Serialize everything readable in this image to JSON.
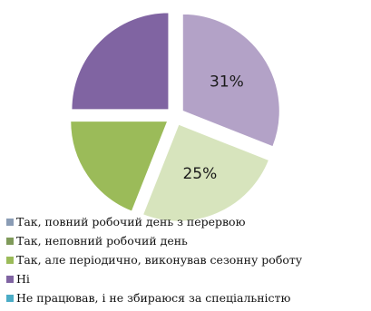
{
  "chart_data": {
    "type": "pie",
    "slices": [
      {
        "label": "Так, повний робочий день з перервою",
        "value": 31,
        "data_label": "31%",
        "color": "#b3a2c7"
      },
      {
        "label": "Так, неповний робочий день",
        "value": 25,
        "data_label": "25%",
        "color": "#d7e4bd"
      },
      {
        "label": "Так, але періодично, виконував сезонну роботу",
        "value": 19,
        "data_label": "",
        "color": "#9bbb59"
      },
      {
        "label": "Ні",
        "value": 25,
        "data_label": "",
        "color": "#8064a2"
      }
    ],
    "legend_items": [
      {
        "label": "Так, повний робочий день з перервою",
        "color": "#8a9cb5"
      },
      {
        "label": "Так, неповний робочий день",
        "color": "#7f9a5a"
      },
      {
        "label": "Так, але періодично, виконував сезонну роботу",
        "color": "#9bbb59"
      },
      {
        "label": "Ні",
        "color": "#8064a2"
      },
      {
        "label": "Не працював, і не збираюся за спеціальністю",
        "color": "#4bacc6"
      }
    ],
    "legend_position": "bottom-left"
  }
}
